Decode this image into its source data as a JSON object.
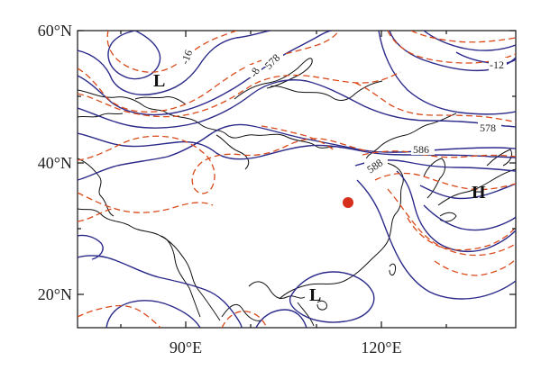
{
  "colors": {
    "height_contour": "#2b2a8a",
    "temperature_contour": "#d94a1a",
    "coastline": "#111111",
    "marker": "#d62f1c"
  },
  "axes": {
    "lat_ticks": [
      "60°N",
      "40°N",
      "20°N"
    ],
    "lon_ticks": [
      "90°E",
      "120°E"
    ]
  },
  "contour_labels": [
    "-16",
    "-8",
    "578",
    "586",
    "588",
    "578",
    "-12"
  ],
  "centers": [
    {
      "type": "L",
      "label": "L"
    },
    {
      "type": "H",
      "label": "H"
    },
    {
      "type": "L",
      "label": "L"
    }
  ],
  "marker": {
    "shape": "circle",
    "icon": "location-dot-icon"
  }
}
